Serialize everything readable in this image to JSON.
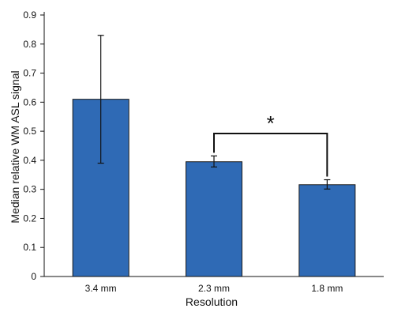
{
  "chart_data": {
    "type": "bar",
    "categories": [
      "3.4 mm",
      "2.3 mm",
      "1.8 mm"
    ],
    "values": [
      0.61,
      0.395,
      0.316
    ],
    "error_low": [
      0.39,
      0.377,
      0.301
    ],
    "error_high": [
      0.83,
      0.415,
      0.333
    ],
    "xlabel": "Resolution",
    "ylabel": "Median relative WM ASL signal",
    "ylim": [
      0,
      0.9
    ],
    "yticks": [
      "0",
      "0.1",
      "0.2",
      "0.3",
      "0.4",
      "0.5",
      "0.6",
      "0.7",
      "0.8",
      "0.9"
    ],
    "grid": false,
    "legend": "none",
    "bar_color": "#2f6ab5",
    "bar_edge_color": "#1a1a1a",
    "annotations": [
      {
        "type": "significance_bracket",
        "from": "2.3 mm",
        "to": "1.8 mm",
        "label": "*"
      }
    ]
  }
}
